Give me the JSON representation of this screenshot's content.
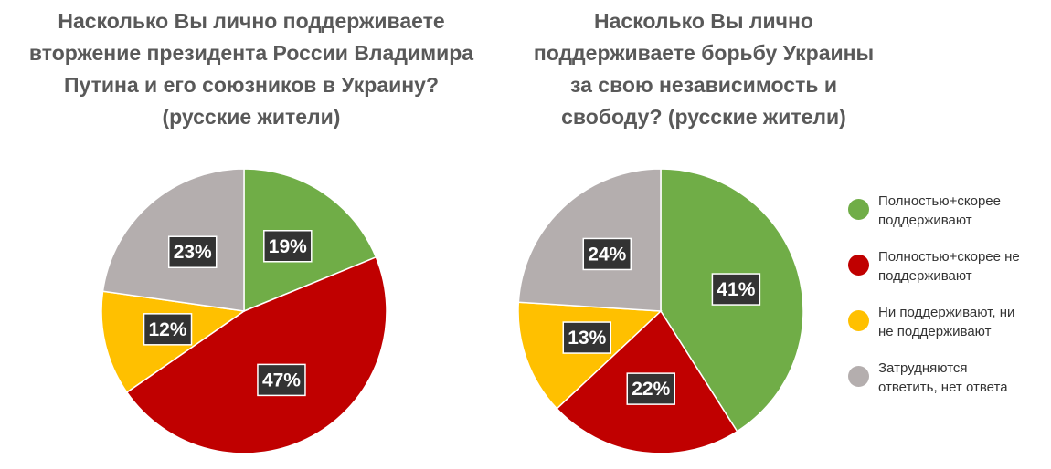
{
  "chart_data": [
    {
      "type": "pie",
      "title": "Насколько Вы лично поддерживаете вторжение президента России Владимира Путина и его союзников в Украину? (русские жители)",
      "categories": [
        "Полностью+скорее поддерживают",
        "Полностью+скорее не поддерживают",
        "Ни поддерживают, ни не поддерживают",
        "Затрудняются ответить, нет ответа"
      ],
      "values": [
        19,
        47,
        12,
        23
      ],
      "labels": [
        "19%",
        "47%",
        "12%",
        "23%"
      ],
      "colors": [
        "#70ad47",
        "#c00000",
        "#ffc000",
        "#b4aeae"
      ]
    },
    {
      "type": "pie",
      "title": "Насколько Вы лично поддерживаете борьбу Украины за свою независимость и свободу? (русские жители)",
      "categories": [
        "Полностью+скорее поддерживают",
        "Полностью+скорее не поддерживают",
        "Ни поддерживают, ни не поддерживают",
        "Затрудняются ответить, нет ответа"
      ],
      "values": [
        41,
        22,
        13,
        24
      ],
      "labels": [
        "41%",
        "22%",
        "13%",
        "24%"
      ],
      "colors": [
        "#70ad47",
        "#c00000",
        "#ffc000",
        "#b4aeae"
      ]
    }
  ],
  "titles": {
    "left": [
      "Насколько Вы лично поддерживаете",
      "вторжение президента России Владимира",
      "Путина и его союзников в Украину?",
      "(русские жители)"
    ],
    "right": [
      "Насколько Вы лично",
      "поддерживаете борьбу Украины",
      "за свою независимость и",
      "свободу? (русские жители)"
    ]
  },
  "legend": [
    {
      "lines": [
        "Полностью+скорее",
        "поддерживают"
      ],
      "color": "#70ad47"
    },
    {
      "lines": [
        "Полностью+скорее не",
        "поддерживают"
      ],
      "color": "#c00000"
    },
    {
      "lines": [
        "Ни поддерживают, ни",
        "не поддерживают"
      ],
      "color": "#ffc000"
    },
    {
      "lines": [
        "Затрудняются",
        "ответить, нет ответа"
      ],
      "color": "#b4aeae"
    }
  ],
  "label_box_color": "#333333"
}
